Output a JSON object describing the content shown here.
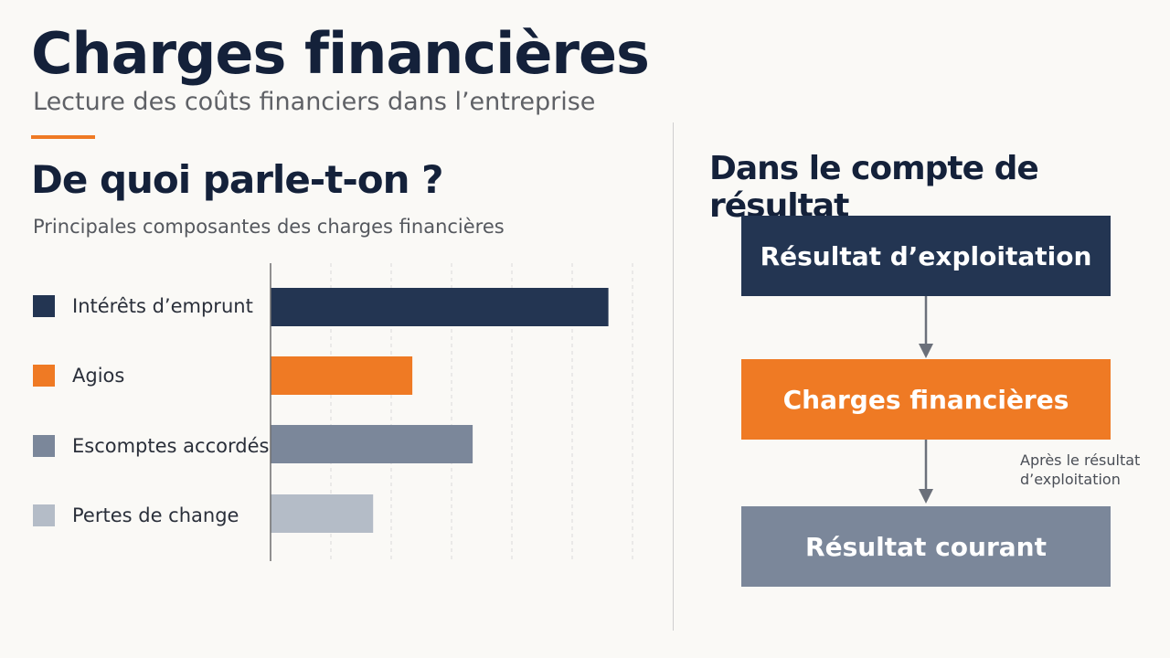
{
  "header": {
    "title": "Charges financières",
    "subtitle": "Lecture des coûts financiers dans l’entreprise"
  },
  "left_section": {
    "heading": "De quoi parle-t-on ?",
    "subheading": "Principales composantes des charges financières"
  },
  "right_section": {
    "heading": "Dans le compte de résultat",
    "flow": [
      {
        "label": "Résultat d’exploitation",
        "color": "#233552"
      },
      {
        "label": "Charges financières",
        "color": "#ef7a24"
      },
      {
        "label": "Résultat courant",
        "color": "#7b879a"
      }
    ],
    "note_line1": "Après le résultat",
    "note_line2": "d’exploitation"
  },
  "chart_data": {
    "type": "bar",
    "orientation": "horizontal",
    "categories": [
      "Intérêts d’emprunt",
      "Agios",
      "Escomptes accordés",
      "Pertes de change"
    ],
    "values": [
      5.6,
      2.35,
      3.35,
      1.7
    ],
    "colors": [
      "#233552",
      "#ef7a24",
      "#7b879a",
      "#b4bcc7"
    ],
    "xlim": [
      0,
      6
    ],
    "grid": true,
    "legend": "left",
    "title": "",
    "xlabel": "",
    "ylabel": ""
  }
}
